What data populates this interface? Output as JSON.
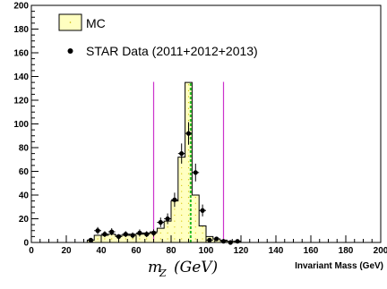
{
  "chart_data": {
    "type": "histogram",
    "xlabel": "Invariant Mass (GeV)",
    "xlim": [
      0,
      200
    ],
    "ylim": [
      0,
      200
    ],
    "x_ticks": [
      0,
      20,
      40,
      60,
      80,
      100,
      120,
      140,
      160,
      180,
      200
    ],
    "y_ticks": [
      0,
      20,
      40,
      60,
      80,
      100,
      120,
      140,
      160,
      180,
      200
    ],
    "annotation": {
      "base": "m",
      "subscript": "Z",
      "unit": "(GeV)"
    },
    "legend": {
      "mc": "MC",
      "data": "STAR Data (2011+2012+2013)"
    },
    "bin_width": 4,
    "mc": {
      "name": "MC",
      "bin_edges_low": [
        32,
        36,
        40,
        44,
        48,
        52,
        56,
        60,
        64,
        68,
        72,
        76,
        80,
        84,
        88,
        92,
        96,
        100,
        104,
        108,
        112,
        116,
        120
      ],
      "values": [
        2,
        6,
        6,
        7,
        6,
        6,
        7,
        7,
        8,
        9,
        12,
        18,
        35,
        72,
        135,
        40,
        14,
        5,
        3,
        2,
        1,
        1,
        0
      ]
    },
    "data": {
      "name": "STAR Data (2011+2012+2013)",
      "x": [
        34,
        38,
        42,
        46,
        50,
        54,
        58,
        62,
        66,
        70,
        74,
        78,
        82,
        86,
        90,
        94,
        98,
        102,
        106,
        110,
        114,
        118
      ],
      "y": [
        2,
        10,
        7,
        9,
        5,
        7,
        6,
        8,
        7,
        8,
        17,
        20,
        36,
        75,
        92,
        59,
        27,
        2,
        3,
        1,
        0,
        1
      ],
      "err": [
        1.5,
        3,
        2.5,
        3,
        2,
        2.5,
        2.5,
        3,
        2.5,
        3,
        4,
        4.5,
        6,
        8.5,
        9.5,
        7.5,
        5,
        1.5,
        1.7,
        1,
        0,
        1
      ]
    },
    "vertical_lines": [
      {
        "x": 70,
        "color": "#cc33cc",
        "style": "solid"
      },
      {
        "x": 110,
        "color": "#cc33cc",
        "style": "solid"
      },
      {
        "x": 91.2,
        "color": "#22bb22",
        "style": "dashed"
      }
    ],
    "colors": {
      "mc_fill": "#ffffc0",
      "mc_line": "#000000",
      "data": "#000000",
      "frame": "#000000"
    },
    "grid": false,
    "legend_position": "top-left"
  }
}
